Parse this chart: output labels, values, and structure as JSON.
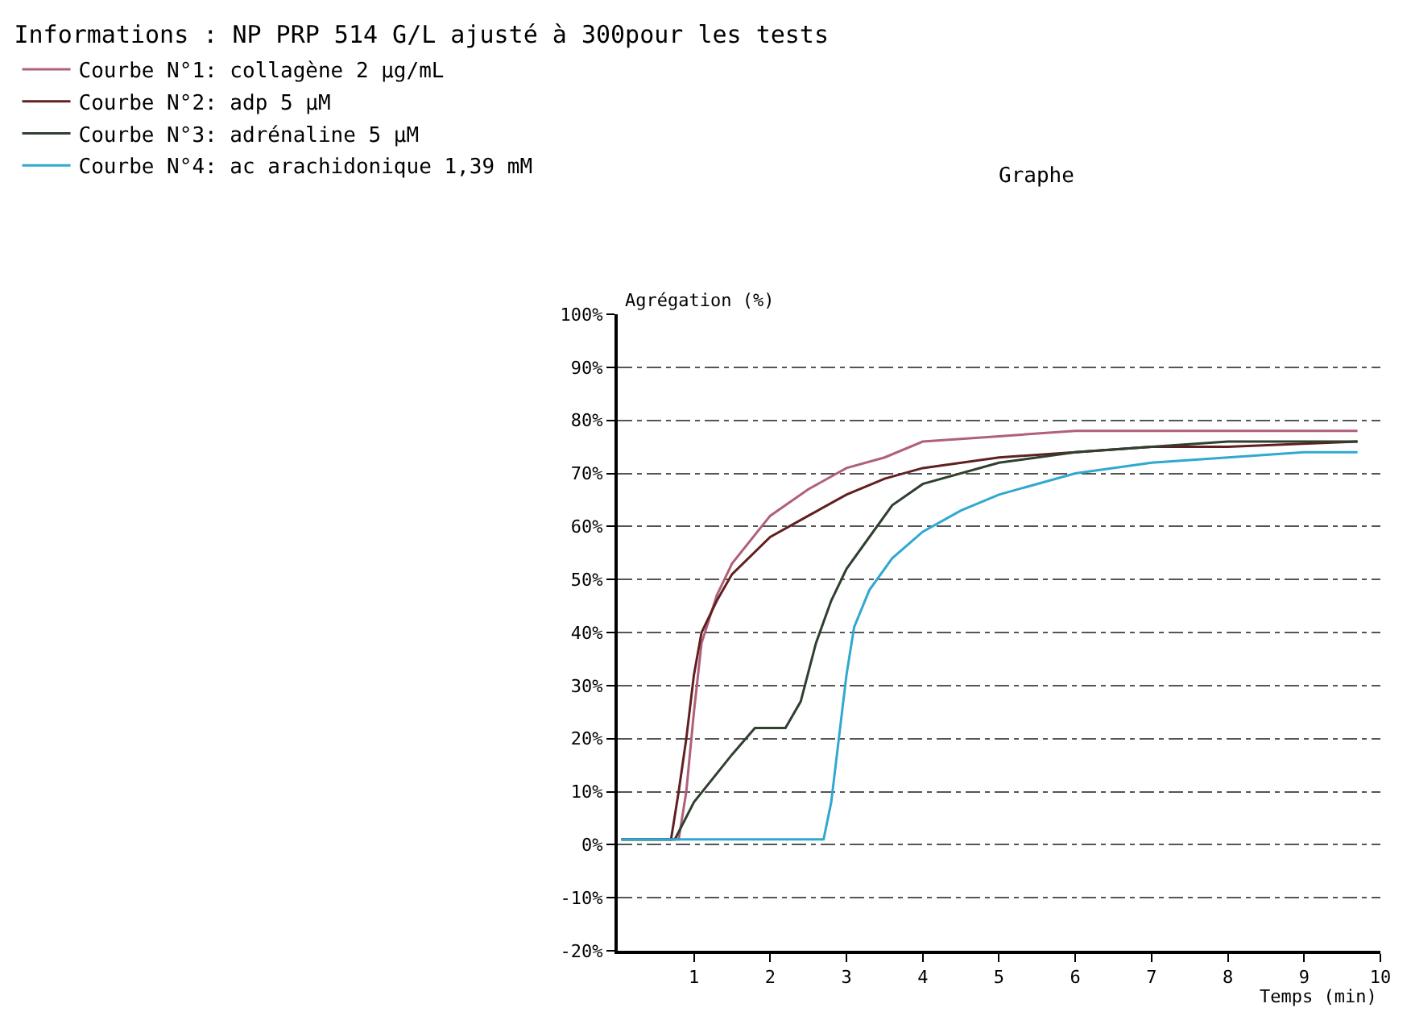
{
  "chart_data": {
    "type": "line",
    "title": "Informations : NP PRP 514 G/L ajusté à 300pour les tests",
    "subtitle": "Graphe",
    "xlabel": "Temps (min)",
    "ylabel": "Agrégation (%)",
    "xlim": [
      0,
      10
    ],
    "xticks": [
      1,
      2,
      3,
      4,
      5,
      6,
      7,
      8,
      9,
      10
    ],
    "ylim": [
      -20,
      100
    ],
    "yticks": [
      {
        "value": -20,
        "label": "-20%"
      },
      {
        "value": -10,
        "label": "-10%"
      },
      {
        "value": 0,
        "label": "0%"
      },
      {
        "value": 10,
        "label": "10%"
      },
      {
        "value": 20,
        "label": "20%"
      },
      {
        "value": 30,
        "label": "30%"
      },
      {
        "value": 40,
        "label": "40%"
      },
      {
        "value": 50,
        "label": "50%"
      },
      {
        "value": 60,
        "label": "60%"
      },
      {
        "value": 70,
        "label": "70%"
      },
      {
        "value": 80,
        "label": "80%"
      },
      {
        "value": 90,
        "label": "90%"
      },
      {
        "value": 100,
        "label": "100%"
      }
    ],
    "grid": "y",
    "legend": "top left",
    "marker": "none",
    "line_style": "solid",
    "series": [
      {
        "name": "Courbe N°1: collagène 2 µg/mL",
        "color": "#b0607a",
        "x": [
          0.05,
          0.8,
          0.9,
          1.0,
          1.1,
          1.3,
          1.5,
          2.0,
          2.5,
          3.0,
          3.5,
          4.0,
          5.0,
          6.0,
          7.0,
          8.0,
          9.0,
          9.7
        ],
        "values": [
          1,
          1,
          10,
          25,
          38,
          47,
          53,
          62,
          67,
          71,
          73,
          76,
          77,
          78,
          78,
          78,
          78,
          78
        ]
      },
      {
        "name": "Courbe N°2: adp 5 µM",
        "color": "#602020",
        "x": [
          0.05,
          0.7,
          0.8,
          0.9,
          1.0,
          1.1,
          1.3,
          1.5,
          2.0,
          2.5,
          3.0,
          3.5,
          4.0,
          5.0,
          6.0,
          7.0,
          8.0,
          9.7
        ],
        "values": [
          1,
          1,
          10,
          20,
          32,
          40,
          46,
          51,
          58,
          62,
          66,
          69,
          71,
          73,
          74,
          75,
          75,
          76
        ]
      },
      {
        "name": "Courbe N°3: adrénaline 5 µM",
        "color": "#304030",
        "x": [
          0.05,
          0.75,
          1.0,
          1.5,
          1.8,
          2.2,
          2.4,
          2.6,
          2.8,
          3.0,
          3.3,
          3.6,
          4.0,
          5.0,
          6.0,
          7.0,
          8.0,
          9.7
        ],
        "values": [
          1,
          1,
          8,
          17,
          22,
          22,
          27,
          38,
          46,
          52,
          58,
          64,
          68,
          72,
          74,
          75,
          76,
          76
        ]
      },
      {
        "name": "Courbe N°4: ac arachidonique 1,39 mM",
        "color": "#30a8d0",
        "x": [
          0.05,
          2.7,
          2.8,
          2.9,
          3.0,
          3.1,
          3.3,
          3.6,
          4.0,
          4.5,
          5.0,
          6.0,
          7.0,
          8.0,
          9.0,
          9.7
        ],
        "values": [
          1,
          1,
          8,
          20,
          32,
          41,
          48,
          54,
          59,
          63,
          66,
          70,
          72,
          73,
          74,
          74
        ]
      }
    ]
  }
}
